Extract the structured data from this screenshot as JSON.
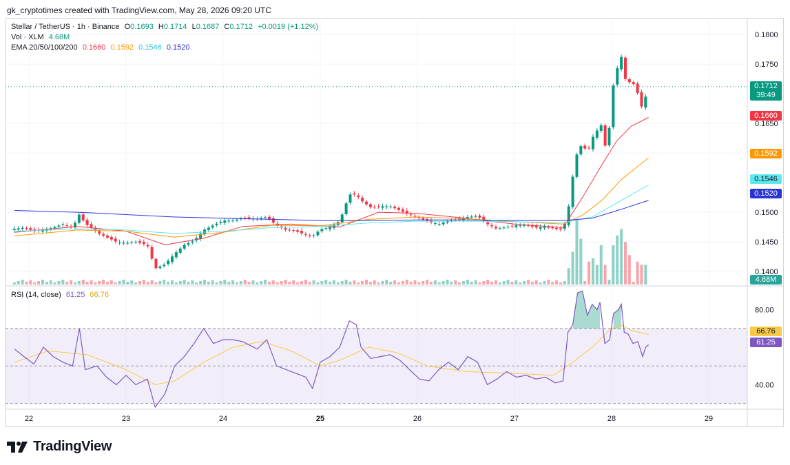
{
  "header": {
    "created_by": "gk_cryptotimes created with TradingView.com, May 28, 2026 09:20 UTC"
  },
  "legend": {
    "symbol": "Stellar / TetherUS · 1h · Binance",
    "o_label": "O",
    "o_value": "0.1693",
    "h_label": "H",
    "h_value": "0.1714",
    "l_label": "L",
    "l_value": "0.1687",
    "c_label": "C",
    "c_value": "0.1712",
    "change": "+0.0019 (+1.12%)",
    "vol_label": "Vol · XLM",
    "vol_value": "4.68M",
    "ema_label": "EMA 20/50/100/200",
    "ema20": "0.1660",
    "ema50": "0.1592",
    "ema100": "0.1546",
    "ema200": "0.1520",
    "rsi_label": "RSI (14, close)",
    "rsi_value": "61.25",
    "rsi_ma_value": "66.76"
  },
  "price_tags": {
    "last": "0.1712",
    "countdown": "39:49",
    "ema20": "0.1660",
    "ema50": "0.1592",
    "ema100": "0.1546",
    "ema200": "0.1520",
    "volume": "4.68M",
    "rsi_ma": "66.76",
    "rsi": "61.25"
  },
  "colors": {
    "up": "#089981",
    "down": "#f23645",
    "ema20": "#f23645",
    "ema50": "#ff9800",
    "ema100": "#5ee7ef",
    "ema200": "#2b35d6",
    "rsi": "#7e57c2",
    "rsi_ma": "#f7c948",
    "rsi_band": "#7e57c2"
  },
  "brand": {
    "name": "TradingView"
  },
  "chart_data": {
    "type": "candlestick",
    "symbol": "Stellar / TetherUS",
    "interval": "1h",
    "exchange": "Binance",
    "x_ticks": [
      "22",
      "23",
      "24",
      "25",
      "26",
      "27",
      "28",
      "29"
    ],
    "bold_x_tick": "25",
    "price_ticks": [
      0.18,
      0.175,
      0.165,
      0.16,
      0.15,
      0.145,
      0.14
    ],
    "price_tick_labels": [
      "0.1800",
      "0.1750",
      "0.1650",
      "0.1600",
      "0.1500",
      "0.1450",
      "0.1400"
    ],
    "price_range": [
      0.1378,
      0.1828
    ],
    "last_price": 0.1712,
    "close_path": [
      [
        21.85,
        0.1472
      ],
      [
        21.95,
        0.1474
      ],
      [
        22.05,
        0.1468
      ],
      [
        22.15,
        0.147
      ],
      [
        22.25,
        0.1474
      ],
      [
        22.35,
        0.148
      ],
      [
        22.45,
        0.1474
      ],
      [
        22.52,
        0.1497
      ],
      [
        22.58,
        0.148
      ],
      [
        22.65,
        0.1474
      ],
      [
        22.72,
        0.1464
      ],
      [
        22.8,
        0.1458
      ],
      [
        22.9,
        0.145
      ],
      [
        23.0,
        0.1448
      ],
      [
        23.1,
        0.145
      ],
      [
        23.22,
        0.1445
      ],
      [
        23.3,
        0.1405
      ],
      [
        23.4,
        0.1412
      ],
      [
        23.5,
        0.143
      ],
      [
        23.6,
        0.1445
      ],
      [
        23.7,
        0.1452
      ],
      [
        23.8,
        0.147
      ],
      [
        23.9,
        0.1478
      ],
      [
        24.0,
        0.1486
      ],
      [
        24.1,
        0.1486
      ],
      [
        24.2,
        0.149
      ],
      [
        24.35,
        0.1489
      ],
      [
        24.45,
        0.1492
      ],
      [
        24.55,
        0.1478
      ],
      [
        24.65,
        0.147
      ],
      [
        24.75,
        0.1468
      ],
      [
        24.85,
        0.1462
      ],
      [
        24.92,
        0.1459
      ],
      [
        25.0,
        0.1471
      ],
      [
        25.1,
        0.1475
      ],
      [
        25.2,
        0.1485
      ],
      [
        25.3,
        0.153
      ],
      [
        25.37,
        0.153
      ],
      [
        25.42,
        0.152
      ],
      [
        25.52,
        0.1508
      ],
      [
        25.62,
        0.151
      ],
      [
        25.72,
        0.151
      ],
      [
        25.82,
        0.1503
      ],
      [
        25.92,
        0.1496
      ],
      [
        26.02,
        0.149
      ],
      [
        26.12,
        0.1484
      ],
      [
        26.22,
        0.148
      ],
      [
        26.32,
        0.1486
      ],
      [
        26.42,
        0.1488
      ],
      [
        26.52,
        0.1492
      ],
      [
        26.62,
        0.1494
      ],
      [
        26.72,
        0.148
      ],
      [
        26.82,
        0.1472
      ],
      [
        26.92,
        0.1475
      ],
      [
        27.02,
        0.1478
      ],
      [
        27.12,
        0.1478
      ],
      [
        27.22,
        0.1474
      ],
      [
        27.32,
        0.1476
      ],
      [
        27.42,
        0.1472
      ],
      [
        27.5,
        0.147
      ],
      [
        27.55,
        0.15
      ],
      [
        27.6,
        0.156
      ],
      [
        27.65,
        0.1605
      ],
      [
        27.7,
        0.1615
      ],
      [
        27.75,
        0.16
      ],
      [
        27.8,
        0.1625
      ],
      [
        27.85,
        0.1638
      ],
      [
        27.88,
        0.1658
      ],
      [
        27.93,
        0.161
      ],
      [
        27.98,
        0.1646
      ],
      [
        28.02,
        0.172
      ],
      [
        28.07,
        0.175
      ],
      [
        28.1,
        0.1762
      ],
      [
        28.13,
        0.1727
      ],
      [
        28.17,
        0.172
      ],
      [
        28.22,
        0.1718
      ],
      [
        28.27,
        0.17
      ],
      [
        28.32,
        0.1672
      ],
      [
        28.35,
        0.1695
      ],
      [
        28.38,
        0.1712
      ]
    ],
    "series": [
      {
        "name": "EMA 20",
        "points": [
          [
            21.85,
            0.1466
          ],
          [
            22.5,
            0.1476
          ],
          [
            23.0,
            0.1468
          ],
          [
            23.4,
            0.1445
          ],
          [
            23.8,
            0.1456
          ],
          [
            24.2,
            0.1476
          ],
          [
            24.7,
            0.148
          ],
          [
            25.2,
            0.1475
          ],
          [
            25.6,
            0.15
          ],
          [
            26.0,
            0.1498
          ],
          [
            26.5,
            0.149
          ],
          [
            27.0,
            0.148
          ],
          [
            27.5,
            0.1474
          ],
          [
            27.7,
            0.1525
          ],
          [
            27.9,
            0.158
          ],
          [
            28.05,
            0.162
          ],
          [
            28.2,
            0.1645
          ],
          [
            28.38,
            0.166
          ]
        ]
      },
      {
        "name": "EMA 50",
        "points": [
          [
            21.85,
            0.146
          ],
          [
            22.5,
            0.147
          ],
          [
            23.0,
            0.1468
          ],
          [
            23.5,
            0.1458
          ],
          [
            24.0,
            0.1466
          ],
          [
            24.5,
            0.1478
          ],
          [
            25.0,
            0.1477
          ],
          [
            25.5,
            0.1488
          ],
          [
            26.0,
            0.1492
          ],
          [
            26.5,
            0.1489
          ],
          [
            27.0,
            0.1484
          ],
          [
            27.5,
            0.148
          ],
          [
            27.7,
            0.1495
          ],
          [
            27.9,
            0.152
          ],
          [
            28.1,
            0.1555
          ],
          [
            28.25,
            0.1575
          ],
          [
            28.38,
            0.1592
          ]
        ]
      },
      {
        "name": "EMA 100",
        "points": [
          [
            21.85,
            0.1468
          ],
          [
            22.5,
            0.1472
          ],
          [
            23.0,
            0.147
          ],
          [
            23.5,
            0.1464
          ],
          [
            24.0,
            0.1468
          ],
          [
            24.5,
            0.1474
          ],
          [
            25.0,
            0.1476
          ],
          [
            25.5,
            0.1482
          ],
          [
            26.0,
            0.1485
          ],
          [
            26.5,
            0.1485
          ],
          [
            27.0,
            0.1484
          ],
          [
            27.5,
            0.1482
          ],
          [
            27.8,
            0.1492
          ],
          [
            28.1,
            0.152
          ],
          [
            28.38,
            0.1546
          ]
        ]
      },
      {
        "name": "EMA 200",
        "points": [
          [
            21.85,
            0.1503
          ],
          [
            22.5,
            0.15
          ],
          [
            23.0,
            0.1496
          ],
          [
            23.5,
            0.1492
          ],
          [
            24.0,
            0.149
          ],
          [
            24.5,
            0.1488
          ],
          [
            25.0,
            0.1486
          ],
          [
            25.5,
            0.1486
          ],
          [
            26.0,
            0.1487
          ],
          [
            26.5,
            0.1487
          ],
          [
            27.0,
            0.1486
          ],
          [
            27.5,
            0.1486
          ],
          [
            27.8,
            0.149
          ],
          [
            28.1,
            0.1505
          ],
          [
            28.38,
            0.152
          ]
        ]
      }
    ],
    "volume": {
      "label": "Vol · XLM",
      "last": "4.68M",
      "spikes": [
        [
          27.55,
          0.25
        ],
        [
          27.6,
          0.5
        ],
        [
          27.65,
          1.0
        ],
        [
          27.7,
          0.7
        ],
        [
          27.75,
          0.35
        ],
        [
          27.8,
          0.4
        ],
        [
          27.85,
          0.3
        ],
        [
          27.9,
          0.6
        ],
        [
          27.95,
          0.3
        ],
        [
          28.0,
          0.6
        ],
        [
          28.05,
          0.75
        ],
        [
          28.1,
          0.85
        ],
        [
          28.15,
          0.65
        ],
        [
          28.2,
          0.45
        ],
        [
          28.25,
          0.35
        ],
        [
          28.3,
          0.3
        ],
        [
          28.35,
          0.3
        ],
        [
          28.38,
          0.1
        ]
      ]
    },
    "rsi": {
      "label": "RSI (14, close)",
      "ticks": [
        80,
        40
      ],
      "tick_labels": [
        "80.00",
        "40.00"
      ],
      "levels": [
        70,
        50,
        30
      ],
      "range": [
        28,
        92
      ],
      "rsi_points": [
        [
          21.85,
          59
        ],
        [
          21.95,
          55
        ],
        [
          22.05,
          51
        ],
        [
          22.15,
          60
        ],
        [
          22.25,
          55
        ],
        [
          22.35,
          52
        ],
        [
          22.45,
          50
        ],
        [
          22.52,
          70
        ],
        [
          22.58,
          48
        ],
        [
          22.7,
          50
        ],
        [
          22.8,
          44
        ],
        [
          22.9,
          40
        ],
        [
          23.0,
          45
        ],
        [
          23.1,
          40
        ],
        [
          23.22,
          43
        ],
        [
          23.3,
          28
        ],
        [
          23.4,
          35
        ],
        [
          23.5,
          50
        ],
        [
          23.6,
          55
        ],
        [
          23.7,
          62
        ],
        [
          23.8,
          70
        ],
        [
          23.9,
          62
        ],
        [
          24.0,
          64
        ],
        [
          24.1,
          64
        ],
        [
          24.2,
          63
        ],
        [
          24.35,
          59
        ],
        [
          24.45,
          64
        ],
        [
          24.55,
          50
        ],
        [
          24.65,
          48
        ],
        [
          24.75,
          46
        ],
        [
          24.85,
          44
        ],
        [
          24.92,
          38
        ],
        [
          25.0,
          52
        ],
        [
          25.1,
          55
        ],
        [
          25.2,
          60
        ],
        [
          25.3,
          74
        ],
        [
          25.37,
          72
        ],
        [
          25.42,
          60
        ],
        [
          25.52,
          54
        ],
        [
          25.62,
          55
        ],
        [
          25.72,
          56
        ],
        [
          25.82,
          53
        ],
        [
          25.92,
          48
        ],
        [
          26.02,
          43
        ],
        [
          26.12,
          42
        ],
        [
          26.22,
          48
        ],
        [
          26.32,
          52
        ],
        [
          26.42,
          48
        ],
        [
          26.52,
          55
        ],
        [
          26.62,
          52
        ],
        [
          26.72,
          40
        ],
        [
          26.82,
          43
        ],
        [
          26.92,
          47
        ],
        [
          27.02,
          44
        ],
        [
          27.12,
          45
        ],
        [
          27.22,
          43
        ],
        [
          27.32,
          44
        ],
        [
          27.42,
          41
        ],
        [
          27.5,
          42
        ],
        [
          27.55,
          68
        ],
        [
          27.6,
          72
        ],
        [
          27.65,
          89
        ],
        [
          27.7,
          90
        ],
        [
          27.75,
          77
        ],
        [
          27.8,
          83
        ],
        [
          27.85,
          80
        ],
        [
          27.88,
          84
        ],
        [
          27.93,
          62
        ],
        [
          27.98,
          64
        ],
        [
          28.02,
          78
        ],
        [
          28.07,
          80
        ],
        [
          28.1,
          83
        ],
        [
          28.13,
          68
        ],
        [
          28.17,
          67
        ],
        [
          28.22,
          62
        ],
        [
          28.27,
          63
        ],
        [
          28.32,
          55
        ],
        [
          28.35,
          60
        ],
        [
          28.38,
          61.25
        ]
      ],
      "ma_points": [
        [
          21.85,
          52
        ],
        [
          22.2,
          58
        ],
        [
          22.6,
          56
        ],
        [
          23.0,
          48
        ],
        [
          23.3,
          40
        ],
        [
          23.5,
          42
        ],
        [
          23.8,
          52
        ],
        [
          24.1,
          60
        ],
        [
          24.4,
          63
        ],
        [
          24.7,
          58
        ],
        [
          25.0,
          50
        ],
        [
          25.2,
          53
        ],
        [
          25.5,
          60
        ],
        [
          25.8,
          57
        ],
        [
          26.1,
          50
        ],
        [
          26.5,
          47
        ],
        [
          27.0,
          46
        ],
        [
          27.4,
          45
        ],
        [
          27.6,
          52
        ],
        [
          27.8,
          60
        ],
        [
          28.0,
          70
        ],
        [
          28.1,
          72
        ],
        [
          28.2,
          69
        ],
        [
          28.38,
          66.76
        ]
      ],
      "last_rsi": 61.25,
      "last_ma": 66.76
    }
  }
}
